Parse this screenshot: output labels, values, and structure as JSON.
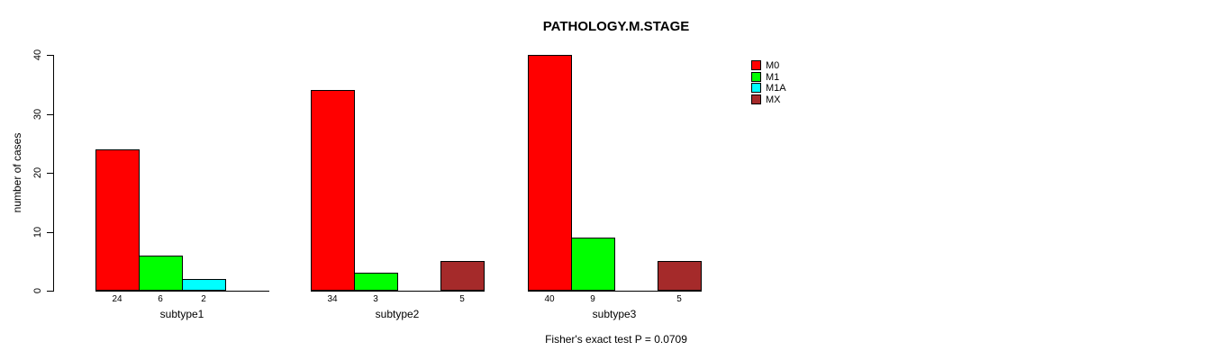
{
  "chart_data": {
    "type": "bar",
    "title": "PATHOLOGY.M.STAGE",
    "ylabel": "number of cases",
    "xlabel": "",
    "ylim": [
      0,
      40
    ],
    "yticks": [
      0,
      10,
      20,
      30,
      40
    ],
    "grid": false,
    "legend_position": "top-right",
    "bar_value_labels": true,
    "categories": [
      "subtype1",
      "subtype2",
      "subtype3"
    ],
    "series": [
      {
        "name": "M0",
        "color": "#FF0000",
        "values": [
          24,
          34,
          40
        ]
      },
      {
        "name": "M1",
        "color": "#00FF00",
        "values": [
          6,
          3,
          9
        ]
      },
      {
        "name": "M1A",
        "color": "#00FFFF",
        "values": [
          2,
          0,
          0
        ]
      },
      {
        "name": "MX",
        "color": "#A52A2A",
        "values": [
          0,
          5,
          5
        ]
      }
    ],
    "value_labels_per_group": [
      [
        24,
        6,
        2
      ],
      [
        34,
        3,
        5
      ],
      [
        40,
        9,
        5
      ]
    ],
    "footer": "Fisher's exact test P = 0.0709"
  },
  "colors": {
    "background": "#FFFFFF",
    "axis": "#000000",
    "text": "#000000"
  }
}
